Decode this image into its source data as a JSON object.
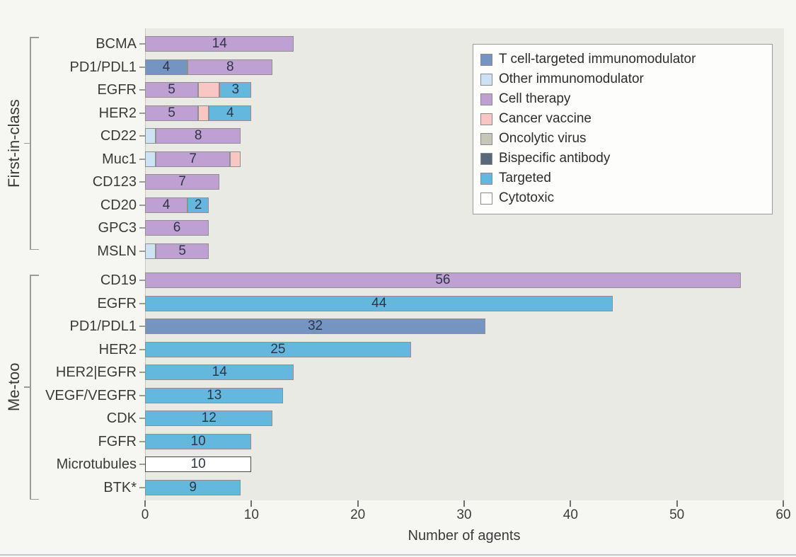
{
  "figure": {
    "background": "#f6f6f3",
    "plot_background": "#e9eae4",
    "bottom_rule_color": "#bdc9d1"
  },
  "chart_data": {
    "type": "bar",
    "orientation": "horizontal",
    "stacked": true,
    "title": "",
    "xlabel": "Number of agents",
    "ylabel": "",
    "xlim": [
      0,
      60
    ],
    "xticks": [
      0,
      10,
      20,
      30,
      40,
      50,
      60
    ],
    "grid": false,
    "legend_position": "top-right",
    "legend": [
      {
        "label": "T cell-targeted immunomodulator",
        "color": "#7494c2",
        "border": "#8f8f8f"
      },
      {
        "label": "Other immunomodulator",
        "color": "#cbe3f5",
        "border": "#8f8f8f"
      },
      {
        "label": "Cell therapy",
        "color": "#bfa0d2",
        "border": "#8f8f8f"
      },
      {
        "label": "Cancer vaccine",
        "color": "#f8c6c3",
        "border": "#8f8f8f"
      },
      {
        "label": "Oncolytic virus",
        "color": "#c6c7b8",
        "border": "#8f8f8f"
      },
      {
        "label": "Bispecific antibody",
        "color": "#5a697a",
        "border": "#8f8f8f"
      },
      {
        "label": "Targeted",
        "color": "#65b8dd",
        "border": "#8f8f8f"
      },
      {
        "label": "Cytotoxic",
        "color": "#ffffff",
        "border": "#4b4b4b"
      }
    ],
    "groups": [
      {
        "name": "First-in-class",
        "rows": [
          {
            "label": "BCMA",
            "segments": [
              {
                "category": "Cell therapy",
                "value": 14,
                "labeled": true
              }
            ]
          },
          {
            "label": "PD1/PDL1",
            "segments": [
              {
                "category": "T cell-targeted immunomodulator",
                "value": 4,
                "labeled": true
              },
              {
                "category": "Cell therapy",
                "value": 8,
                "labeled": true
              }
            ]
          },
          {
            "label": "EGFR",
            "segments": [
              {
                "category": "Cell therapy",
                "value": 5,
                "labeled": true
              },
              {
                "category": "Cancer vaccine",
                "value": 2,
                "labeled": false
              },
              {
                "category": "Targeted",
                "value": 3,
                "labeled": true
              }
            ]
          },
          {
            "label": "HER2",
            "segments": [
              {
                "category": "Cell therapy",
                "value": 5,
                "labeled": true
              },
              {
                "category": "Cancer vaccine",
                "value": 1,
                "labeled": false
              },
              {
                "category": "Targeted",
                "value": 4,
                "labeled": true
              }
            ]
          },
          {
            "label": "CD22",
            "segments": [
              {
                "category": "Other immunomodulator",
                "value": 1,
                "labeled": false
              },
              {
                "category": "Cell therapy",
                "value": 8,
                "labeled": true
              }
            ]
          },
          {
            "label": "Muc1",
            "segments": [
              {
                "category": "Other immunomodulator",
                "value": 1,
                "labeled": false
              },
              {
                "category": "Cell therapy",
                "value": 7,
                "labeled": true
              },
              {
                "category": "Cancer vaccine",
                "value": 1,
                "labeled": false
              }
            ]
          },
          {
            "label": "CD123",
            "segments": [
              {
                "category": "Cell therapy",
                "value": 7,
                "labeled": true
              }
            ]
          },
          {
            "label": "CD20",
            "segments": [
              {
                "category": "Cell therapy",
                "value": 4,
                "labeled": true
              },
              {
                "category": "Targeted",
                "value": 2,
                "labeled": true
              }
            ]
          },
          {
            "label": "GPC3",
            "segments": [
              {
                "category": "Cell therapy",
                "value": 6,
                "labeled": true
              }
            ]
          },
          {
            "label": "MSLN",
            "segments": [
              {
                "category": "Other immunomodulator",
                "value": 1,
                "labeled": false
              },
              {
                "category": "Cell therapy",
                "value": 5,
                "labeled": true
              }
            ]
          }
        ]
      },
      {
        "name": "Me-too",
        "rows": [
          {
            "label": "CD19",
            "segments": [
              {
                "category": "Cell therapy",
                "value": 56,
                "labeled": true
              }
            ]
          },
          {
            "label": "EGFR",
            "segments": [
              {
                "category": "Targeted",
                "value": 44,
                "labeled": true
              }
            ]
          },
          {
            "label": "PD1/PDL1",
            "segments": [
              {
                "category": "T cell-targeted immunomodulator",
                "value": 32,
                "labeled": true
              }
            ]
          },
          {
            "label": "HER2",
            "segments": [
              {
                "category": "Targeted",
                "value": 25,
                "labeled": true
              }
            ]
          },
          {
            "label": "HER2|EGFR",
            "segments": [
              {
                "category": "Targeted",
                "value": 14,
                "labeled": true
              }
            ]
          },
          {
            "label": "VEGF/VEGFR",
            "segments": [
              {
                "category": "Targeted",
                "value": 13,
                "labeled": true
              }
            ]
          },
          {
            "label": "CDK",
            "segments": [
              {
                "category": "Targeted",
                "value": 12,
                "labeled": true
              }
            ]
          },
          {
            "label": "FGFR",
            "segments": [
              {
                "category": "Targeted",
                "value": 10,
                "labeled": true
              }
            ]
          },
          {
            "label": "Microtubules",
            "segments": [
              {
                "category": "Cytotoxic",
                "value": 10,
                "labeled": true
              }
            ]
          },
          {
            "label": "BTK*",
            "segments": [
              {
                "category": "Targeted",
                "value": 9,
                "labeled": true
              }
            ]
          }
        ]
      }
    ]
  }
}
